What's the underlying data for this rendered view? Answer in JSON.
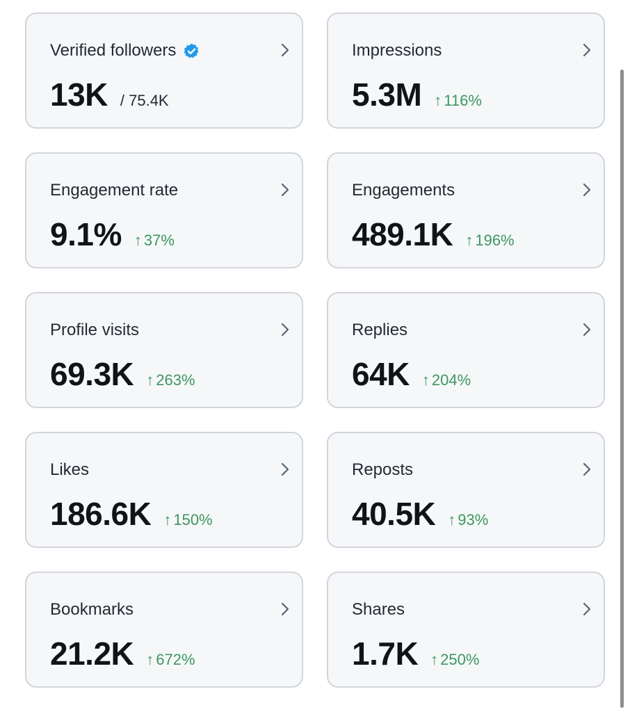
{
  "cards": [
    {
      "label": "Verified followers",
      "value": "13K",
      "total": "/ 75.4K",
      "verified_icon": "verified-badge-icon",
      "verified_color": "#1d9bf0"
    },
    {
      "label": "Impressions",
      "value": "5.3M",
      "change": "116%"
    },
    {
      "label": "Engagement rate",
      "value": "9.1%",
      "change": "37%"
    },
    {
      "label": "Engagements",
      "value": "489.1K",
      "change": "196%"
    },
    {
      "label": "Profile visits",
      "value": "69.3K",
      "change": "263%"
    },
    {
      "label": "Replies",
      "value": "64K",
      "change": "204%"
    },
    {
      "label": "Likes",
      "value": "186.6K",
      "change": "150%"
    },
    {
      "label": "Reposts",
      "value": "40.5K",
      "change": "93%"
    },
    {
      "label": "Bookmarks",
      "value": "21.2K",
      "change": "672%"
    },
    {
      "label": "Shares",
      "value": "1.7K",
      "change": "250%"
    }
  ],
  "icons": {
    "chevron": "chevron-right-icon",
    "up_arrow": "↑"
  },
  "colors": {
    "positive": "#3a9a5c",
    "card_bg": "#f5f7f8",
    "card_border": "#d0d6dc"
  }
}
